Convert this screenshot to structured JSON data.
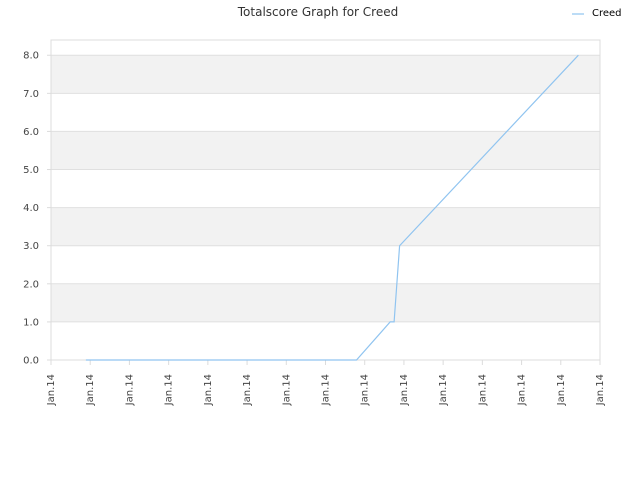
{
  "chart_data": {
    "type": "line",
    "title": "Totalscore Graph for Creed",
    "xlabel": "",
    "ylabel": "",
    "x_tick_labels": [
      "Jan.14",
      "Jan.14",
      "Jan.14",
      "Jan.14",
      "Jan.14",
      "Jan.14",
      "Jan.14",
      "Jan.14",
      "Jan.14",
      "Jan.14",
      "Jan.14",
      "Jan.14",
      "Jan.14",
      "Jan.14",
      "Jan.14"
    ],
    "y_tick_labels": [
      "0.0",
      "1.0",
      "2.0",
      "3.0",
      "4.0",
      "5.0",
      "6.0",
      "7.0",
      "8.0"
    ],
    "ylim": [
      0,
      8.4
    ],
    "xlim": [
      0,
      14
    ],
    "grid": true,
    "legend_position": "top-right",
    "series": [
      {
        "name": "Creed",
        "color": "#90c4f0",
        "points": [
          [
            0.89,
            0
          ],
          [
            7.79,
            0
          ],
          [
            8.65,
            1.0
          ],
          [
            8.75,
            1.0
          ],
          [
            8.89,
            3.0
          ],
          [
            13.45,
            8.0
          ]
        ]
      }
    ]
  },
  "colors": {
    "band": "#f2f2f2",
    "grid": "#e0e0e0",
    "axis": "#dcdcdc"
  }
}
